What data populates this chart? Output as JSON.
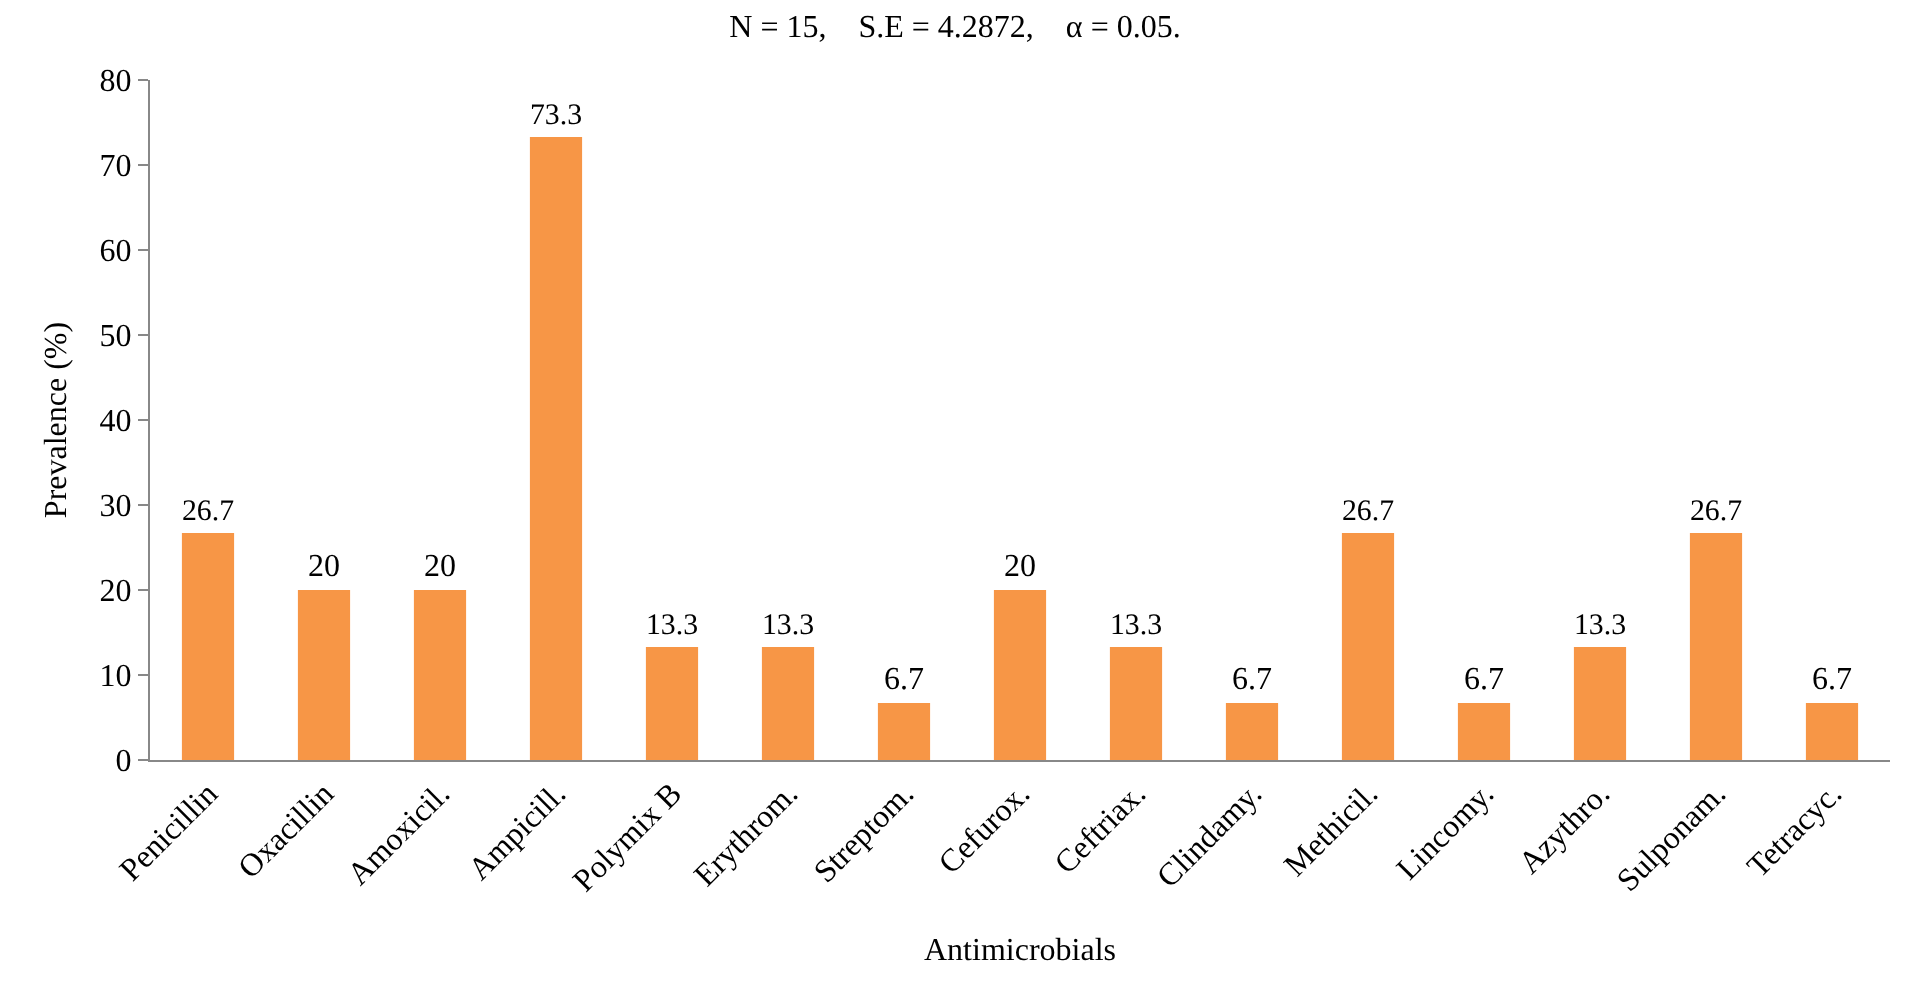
{
  "chart_data": {
    "type": "bar",
    "title": "N = 15,    S.E = 4.2872,    α = 0.05.",
    "xlabel": "Antimicrobials",
    "ylabel": "Prevalence (%)",
    "categories": [
      "Penicillin",
      "Oxacillin",
      "Amoxicil.",
      "Ampicill.",
      "Polymix B",
      "Erythrom.",
      "Streptom.",
      "Cefurox.",
      "Ceftriax.",
      "Clindamy.",
      "Methicil.",
      "Lincomy.",
      "Azythro.",
      "Sulponam.",
      "Tetracyc."
    ],
    "values": [
      26.7,
      20,
      20,
      73.3,
      13.3,
      13.3,
      6.7,
      20,
      13.3,
      6.7,
      26.7,
      6.7,
      13.3,
      26.7,
      6.7
    ],
    "color": "#f79646",
    "ylim": [
      0,
      80
    ],
    "yticks": [
      0,
      10,
      20,
      30,
      40,
      50,
      60,
      70,
      80
    ],
    "grid": false,
    "data_labels": true
  }
}
